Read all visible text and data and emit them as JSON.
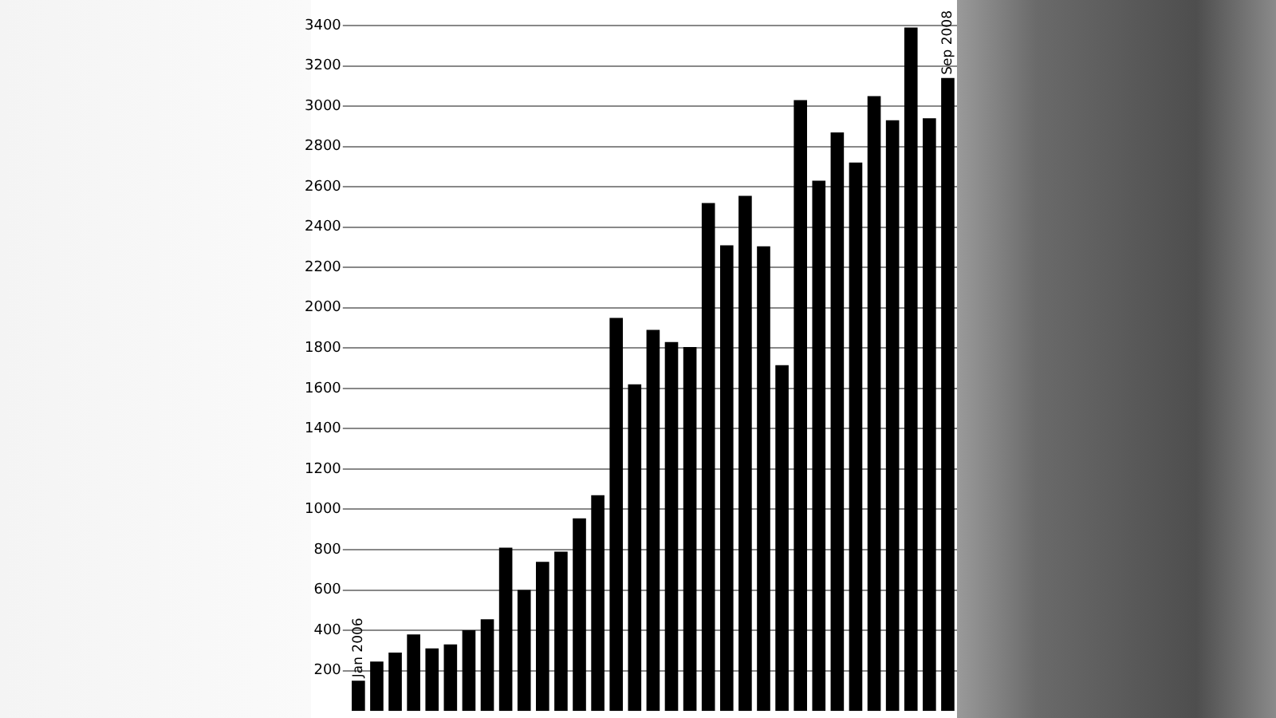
{
  "chart_data": {
    "type": "bar",
    "categories": [
      "Jan 2006",
      null,
      null,
      null,
      null,
      null,
      null,
      null,
      null,
      null,
      null,
      null,
      null,
      null,
      null,
      null,
      null,
      null,
      null,
      null,
      null,
      null,
      null,
      null,
      null,
      null,
      null,
      null,
      null,
      null,
      null,
      null,
      "Sep 2008"
    ],
    "values": [
      150,
      245,
      290,
      380,
      310,
      330,
      400,
      455,
      810,
      600,
      740,
      790,
      955,
      1070,
      1950,
      1620,
      1890,
      1830,
      1805,
      2520,
      2310,
      2555,
      2305,
      1715,
      3030,
      2630,
      2870,
      2720,
      3050,
      2930,
      3390,
      2940,
      3140
    ],
    "color": "#000000",
    "ylim": [
      0,
      3400
    ],
    "yticks": [
      200,
      400,
      600,
      800,
      1000,
      1200,
      1400,
      1600,
      1800,
      2000,
      2200,
      2400,
      2600,
      2800,
      3000,
      3200,
      3400
    ],
    "grid": "y",
    "legend": false
  }
}
